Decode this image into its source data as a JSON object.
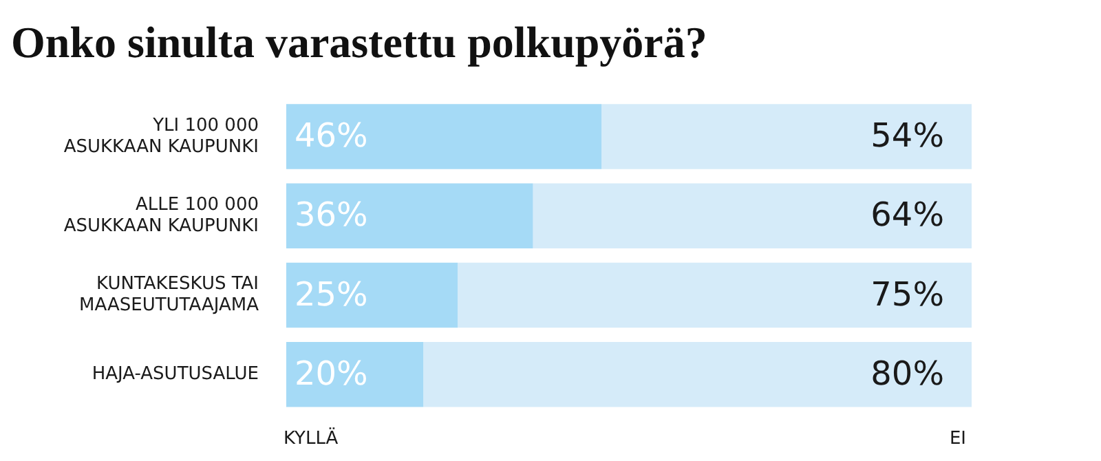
{
  "chart_data": {
    "type": "bar",
    "title": "Onko sinulta varastettu polkupyörä?",
    "orientation": "horizontal",
    "stacked": true,
    "categories": [
      "YLI 100 000 ASUKKAAN KAUPUNKI",
      "ALLE 100 000 ASUKKAAN KAUPUNKI",
      "KUNTAKESKUS TAI MAASEUTUTAAJAMA",
      "HAJA-ASUTUSALUE"
    ],
    "series": [
      {
        "name": "KYLLÄ",
        "color": "#a5daf6",
        "values": [
          46,
          36,
          25,
          20
        ],
        "value_labels": [
          "46%",
          "36%",
          "25%",
          "20%"
        ]
      },
      {
        "name": "EI",
        "color": "#d5ebf9",
        "values": [
          54,
          64,
          75,
          80
        ],
        "value_labels": [
          "54%",
          "64%",
          "75%",
          "80%"
        ]
      }
    ],
    "legend": "bottom",
    "tick_labels": "y"
  }
}
